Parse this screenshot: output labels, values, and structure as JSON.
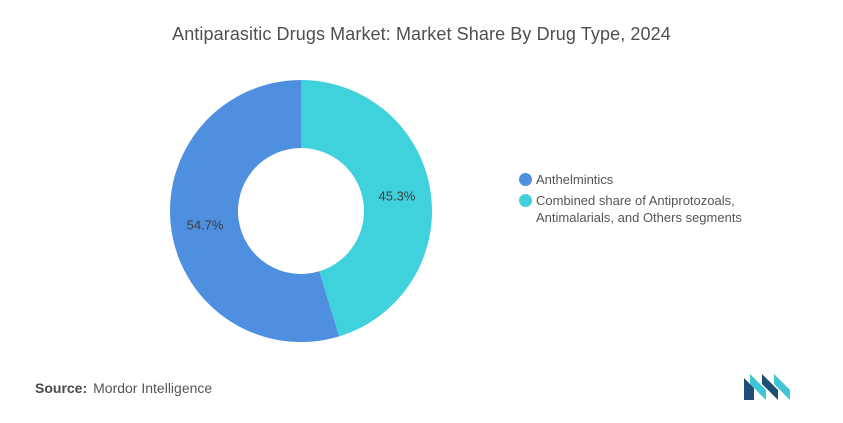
{
  "title": "Antiparasitic Drugs Market: Market Share By Drug Type, 2024",
  "source": {
    "prefix": "Source:",
    "name": "Mordor Intelligence"
  },
  "logo": {
    "icon": "mordor-intelligence-logo-icon",
    "colors": [
      "#1f4e79",
      "#3ec6d4"
    ]
  },
  "chart_data": {
    "type": "pie",
    "variant": "donut",
    "title": "Antiparasitic Drugs Market: Market Share By Drug Type, 2024",
    "legend_position": "right",
    "slices": [
      {
        "label": "Anthelmintics",
        "value": 54.7,
        "display": "54.7%",
        "color": "#4e8fe0"
      },
      {
        "label": "Combined share of Antiprotozoals, Antimalarials, and Others segments",
        "value": 45.3,
        "display": "45.3%",
        "color": "#3fd1dc"
      }
    ]
  }
}
